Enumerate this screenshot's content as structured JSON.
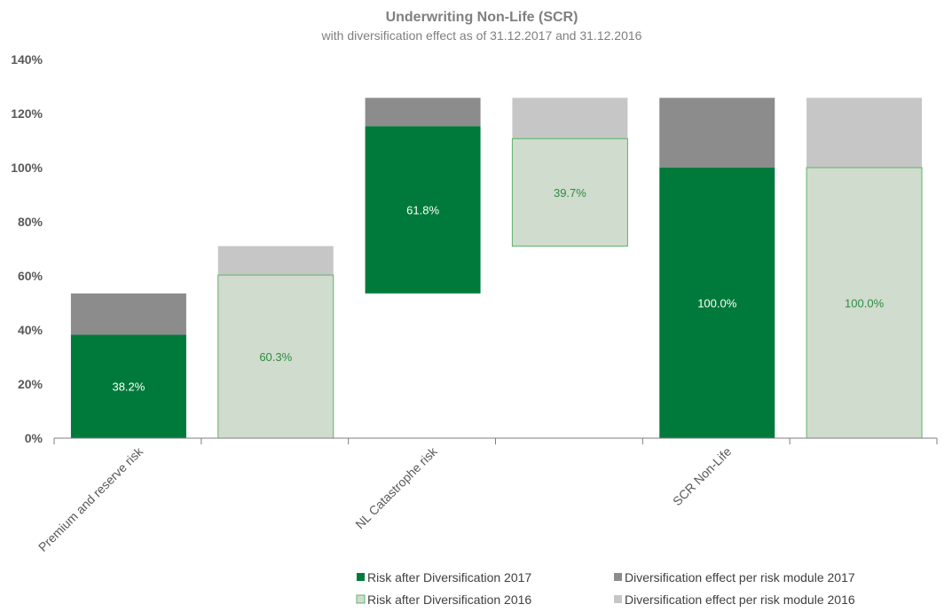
{
  "chart_data": {
    "type": "bar",
    "subtype": "waterfall-stacked",
    "title": "Underwriting Non-Life (SCR)",
    "subtitle": "with diversification effect as of 31.12.2017 and 31.12.2016",
    "y_ticks": [
      "0%",
      "20%",
      "40%",
      "60%",
      "80%",
      "100%",
      "120%",
      "140%"
    ],
    "ylim": [
      0,
      140
    ],
    "categories": [
      "Premium and reserve risk",
      "NL Catastrophe risk",
      "SCR Non-Life"
    ],
    "bars": [
      {
        "category": "Premium and reserve risk",
        "year": "2017",
        "base": 0,
        "risk": 38.2,
        "risk_top": 38.2,
        "diversification_top": 53.5,
        "label": "38.2%"
      },
      {
        "category": "Premium and reserve risk",
        "year": "2016",
        "base": 0,
        "risk": 60.3,
        "risk_top": 60.3,
        "diversification_top": 71.0,
        "label": "60.3%"
      },
      {
        "category": "NL Catastrophe risk",
        "year": "2017",
        "base": 53.5,
        "risk": 61.8,
        "risk_top": 115.3,
        "diversification_top": 125.8,
        "label": "61.8%"
      },
      {
        "category": "NL Catastrophe risk",
        "year": "2016",
        "base": 71.0,
        "risk": 39.7,
        "risk_top": 110.7,
        "diversification_top": 125.8,
        "label": "39.7%"
      },
      {
        "category": "SCR Non-Life",
        "year": "2017",
        "base": 0,
        "risk": 100.0,
        "risk_top": 100.0,
        "diversification_top": 125.8,
        "label": "100.0%"
      },
      {
        "category": "SCR Non-Life",
        "year": "2016",
        "base": 0,
        "risk": 100.0,
        "risk_top": 100.0,
        "diversification_top": 125.8,
        "label": "100.0%"
      }
    ],
    "series": [
      {
        "name": "Risk after Diversification 2017",
        "color": "#007a3a"
      },
      {
        "name": "Diversification effect per risk module 2017",
        "color": "#8c8c8c"
      },
      {
        "name": "Risk after Diversification 2016",
        "color": "#d0dccd",
        "border": "#5fb36b"
      },
      {
        "name": "Diversification effect per risk module 2016",
        "color": "#c6c6c6"
      }
    ],
    "label_colors": {
      "2017": "#ffffff",
      "2016": "#2e8b43"
    },
    "legend_position": "bottom-right",
    "grid": false
  }
}
